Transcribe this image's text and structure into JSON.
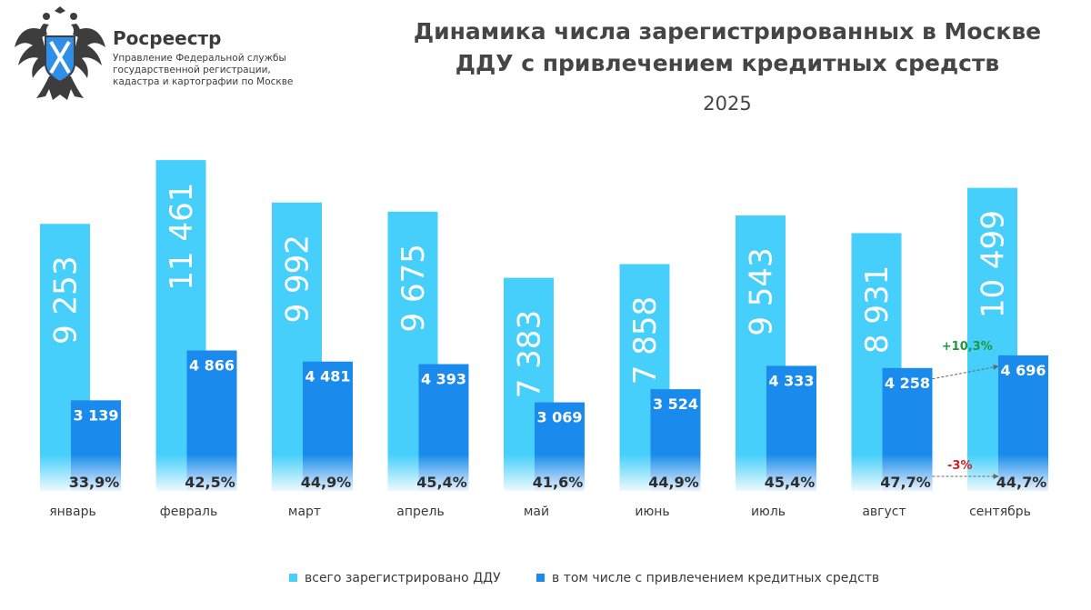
{
  "header": {
    "org_name": "Росреестр",
    "org_subtitle": [
      "Управление Федеральной службы",
      "государственной регистрации,",
      "кадастра и картографии по Москве"
    ],
    "logo_icon": "double-headed-eagle-emblem-icon"
  },
  "colors": {
    "total": "#47cffb",
    "credit": "#1a8bec",
    "increase": "#1a9a3c",
    "decrease": "#d61f1f"
  },
  "chart_data": {
    "type": "bar",
    "title": "Динамика числа зарегистрированных в Москве ДДУ с привлечением кредитных средств",
    "title_lines": [
      "Динамика числа зарегистрированных в Москве",
      "ДДУ с привлечением кредитных средств"
    ],
    "subtitle": "2025",
    "categories": [
      "январь",
      "февраль",
      "март",
      "апрель",
      "май",
      "июнь",
      "июль",
      "август",
      "сентябрь"
    ],
    "series": [
      {
        "name": "всего зарегистрировано ДДУ",
        "values": [
          9253,
          11461,
          9992,
          9675,
          7383,
          7858,
          9543,
          8931,
          10499
        ],
        "labels": [
          "9 253",
          "11 461",
          "9 992",
          "9 675",
          "7 383",
          "7 858",
          "9 543",
          "8 931",
          "10 499"
        ]
      },
      {
        "name": "в том числе с привлечением кредитных средств",
        "values": [
          3139,
          4866,
          4481,
          4393,
          3069,
          3524,
          4333,
          4258,
          4696
        ],
        "labels": [
          "3 139",
          "4 866",
          "4 481",
          "4 393",
          "3 069",
          "3 524",
          "4 333",
          "4 258",
          "4 696"
        ]
      }
    ],
    "shares": [
      "33,9%",
      "42,5%",
      "44,9%",
      "45,4%",
      "41,6%",
      "44,9%",
      "45,4%",
      "47,7%",
      "44,7%"
    ],
    "annotations": [
      {
        "text": "+10,3%",
        "from": "август",
        "to": "сентябрь",
        "series": "в том числе с привлечением кредитных средств",
        "color": "increase"
      },
      {
        "text": "-3%",
        "from": "август",
        "to": "сентябрь",
        "series": "доля",
        "color": "decrease"
      }
    ],
    "legend_position": "bottom-center",
    "grid": false,
    "ylim": [
      0,
      12000
    ]
  }
}
